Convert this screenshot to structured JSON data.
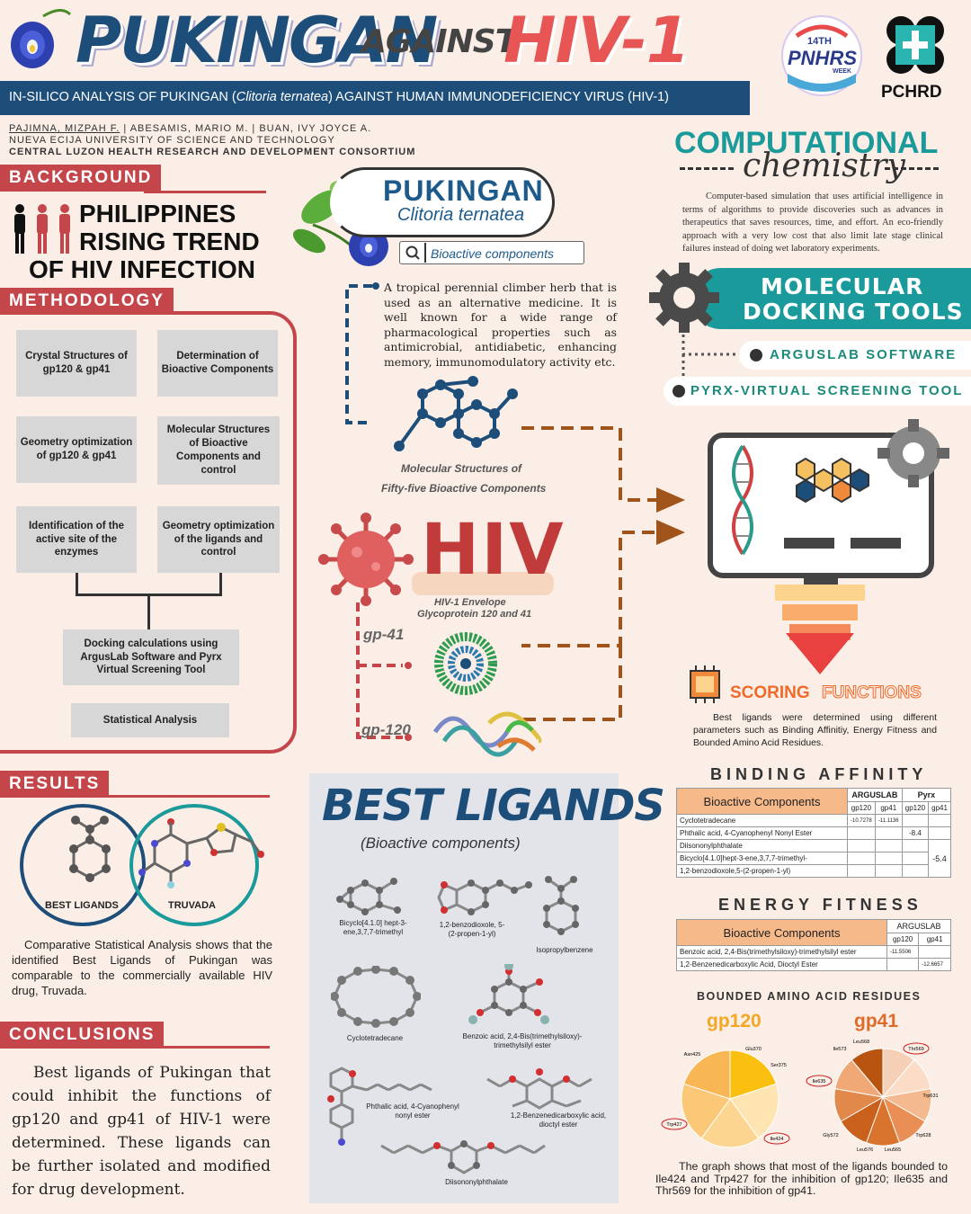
{
  "title": {
    "main": "PUKINGAN",
    "against": "AGAINST",
    "target": "HIV-1"
  },
  "subtitle_pre": "IN-SILICO ANALYSIS OF PUKINGAN (",
  "subtitle_ital": "Clitoria ternatea",
  "subtitle_post": ") AGAINST HUMAN IMMUNODEFICIENCY VIRUS (HIV-1)",
  "authors": {
    "lead": "PAJIMNA, MIZPAH F.",
    "rest": " | ABESAMIS, MARIO M. | BUAN, IVY JOYCE A.",
    "school": "NUEVA ECIJA UNIVERSITY OF SCIENCE AND TECHNOLOGY",
    "consortium": "CENTRAL LUZON HEALTH RESEARCH AND DEVELOPMENT CONSORTIUM"
  },
  "logos": {
    "pnhrs_top": "14TH",
    "pnhrs_mid": "PNHRS",
    "pnhrs_sub": "WEEK",
    "pchrd": "PCHRD"
  },
  "background": {
    "heading": "BACKGROUND",
    "l1": "PHILIPPINES",
    "l2": "RISING TREND",
    "l3": "OF HIV INFECTION"
  },
  "methodology": {
    "heading": "METHODOLOGY",
    "boxes": [
      "Crystal Structures of gp120 & gp41",
      "Determination of Bioactive Components",
      "Geometry optimization of gp120 & gp41",
      "Molecular Structures of Bioactive Components and control",
      "Identification of the active site of the enzymes",
      "Geometry optimization of the ligands and control",
      "Docking calculations using ArgusLab Software and Pyrx Virtual Screening Tool",
      "Statistical Analysis"
    ]
  },
  "pukingan": {
    "name": "PUKINGAN",
    "sci": "Clitoria ternatea",
    "search": "Bioactive components",
    "desc": "A tropical perennial climber herb that is used as an alternative medicine. It is well known for a wide range of pharmacological properties such as antimicrobial, antidiabetic, enhancing memory, immunomodulatory activity etc.",
    "mol_caption1": "Molecular Structures of",
    "mol_caption2": "Fifty-five Bioactive Components"
  },
  "hiv": {
    "word": "HIV",
    "cap1": "HIV-1 Envelope",
    "cap2": "Glycoprotein 120 and 41",
    "gp41": "gp-41",
    "gp120": "gp-120"
  },
  "comp": {
    "t1": "COMPUTATIONAL",
    "t2": "chemistry",
    "desc": "Computer-based simulation that uses artificial intelligence in terms of algorithms to provide discoveries such as advances in therapeutics that saves resources, time, and effort. An eco-friendly approach with a very low cost that also limit late stage clinical failures instead of doing wet laboratory experiments."
  },
  "docking": {
    "t1": "MOLECULAR",
    "t2": "DOCKING TOOLS",
    "tool1": "ARGUSLAB SOFTWARE",
    "tool2": "PYRX-VIRTUAL SCREENING TOOL"
  },
  "scoring": {
    "t1": "SCORING",
    "t2": "FUNCTIONS",
    "desc": "Best ligands were determined using different parameters such as Binding Affinitiy, Energy Fitness and Bounded Amino Acid Residues."
  },
  "binding": {
    "heading": "BINDING AFFINITY",
    "col": "Bioactive Components",
    "argus": "ARGUSLAB",
    "pyrx": "Pyrx",
    "gp120": "gp120",
    "gp41": "gp41",
    "rows": [
      {
        "name": "Cyclotetradecane",
        "a120": "-10.7278",
        "a41": "-11.1136",
        "p120": ""
      },
      {
        "name": "Phthalic acid, 4-Cyanophenyl Nonyl Ester",
        "a120": "",
        "a41": "",
        "p120": "-8.4"
      },
      {
        "name": "Diisononylphthalate",
        "a120": "",
        "a41": "",
        "p120": ""
      },
      {
        "name": "Bicyclo[4.1.0]hept-3-ene,3,7,7-trimethyl-",
        "a120": "",
        "a41": "",
        "p120": ""
      },
      {
        "name": "1,2-benzodioxole,5-(2-propen-1-yl)",
        "a120": "",
        "a41": "",
        "p120": ""
      }
    ],
    "merged": "-5.4"
  },
  "energy": {
    "heading": "ENERGY FITNESS",
    "col": "Bioactive Components",
    "argus": "ARGUSLAB",
    "gp120": "gp120",
    "gp41": "gp41",
    "rows": [
      {
        "name": "Benzoic acid, 2,4-Bis(trimethylsiloxy)-trimethylsilyl ester",
        "v120": "-11.5506",
        "v41": ""
      },
      {
        "name": "1,2-Benzenedicarboxylic Acid, Dioctyl Ester",
        "v120": "",
        "v41": "-12.6657"
      }
    ]
  },
  "residues": {
    "heading": "BOUNDED AMINO ACID RESIDUES",
    "gp120": "gp120",
    "gp41": "gp41",
    "gp120_labels": [
      "Asn425",
      "Glu370",
      "Ser375",
      "Ile424",
      "Trp427"
    ],
    "gp41_labels": [
      "Leu568",
      "Ile573",
      "Thr569",
      "Ile635",
      "Trp631",
      "Gly572",
      "Leu576",
      "Leu565",
      "Trp628"
    ],
    "gp120_colors": [
      "#fbbf10",
      "#fde4b0",
      "#fcd690",
      "#fbc877",
      "#f8b655"
    ],
    "gp41_colors": [
      "#f6d0b6",
      "#fbdcc7",
      "#f4b98e",
      "#e98f56",
      "#d9742e",
      "#c9611c",
      "#e0894a",
      "#f0a877",
      "#b95410"
    ],
    "note": "The graph shows that most of the ligands bounded to Ile424 and Trp427 for the inhibition of gp120; Ile635 and Thr569 for the inhibition of gp41."
  },
  "results": {
    "heading": "RESULTS",
    "best": "BEST LIGANDS",
    "truvada": "TRUVADA",
    "text": "Comparative Statistical Analysis shows that the identified Best Ligands of Pukingan was comparable to the commercially available HIV drug, Truvada."
  },
  "conclusions": {
    "heading": "CONCLUSIONS",
    "text": "Best ligands of Pukingan that could inhibit the functions of gp120 and gp41 of HIV-1 were determined. These ligands can be further isolated and modified for drug development."
  },
  "ligands": {
    "title": "BEST LIGANDS",
    "sub": "(Bioactive components)",
    "items": [
      "Bicyclo[4.1.0] hept-3-ene,3,7,7-trimethyl",
      "1,2-benzodioxole, 5-(2-propen-1-yl)",
      "Isopropylbenzene",
      "Cyclotetradecane",
      "Benzoic acid, 2,4-Bis(trimethylsiloxy)- trimethylsilyl ester",
      "Phthalic acid, 4-Cyanophenyl nonyl ester",
      "1,2-Benzenedicarboxylic acid, dioctyl ester",
      "Diisononylphthalate"
    ]
  }
}
